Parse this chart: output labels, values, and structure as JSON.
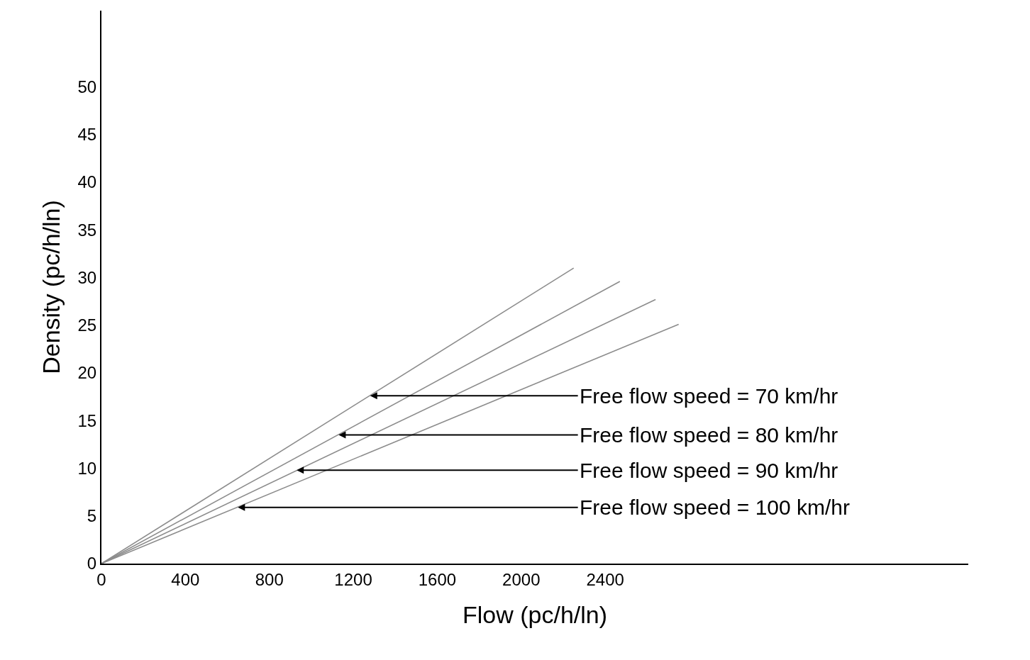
{
  "chart_data": {
    "type": "line",
    "xlabel": "Flow (pc/h/ln)",
    "ylabel": "Density (pc/h/ln)",
    "series": [
      {
        "color": "#8c8c8c",
        "x": [
          0,
          2250
        ],
        "values": [
          0,
          31
        ]
      },
      {
        "color": "#8c8c8c",
        "x": [
          0,
          2470
        ],
        "values": [
          0,
          29.6
        ]
      },
      {
        "color": "#8c8c8c",
        "x": [
          0,
          2640
        ],
        "values": [
          0,
          27.7
        ]
      },
      {
        "color": "#8c8c8c",
        "x": [
          0,
          2750
        ],
        "values": [
          0,
          25.1
        ]
      }
    ],
    "annotations": [
      {
        "text": "Free flow speed = 70 km/hr",
        "x": 1280,
        "y": 17.6
      },
      {
        "text": "Free flow speed = 80 km/hr",
        "x": 1130,
        "y": 13.5
      },
      {
        "text": "Free flow speed = 90 km/hr",
        "x": 930,
        "y": 9.8
      },
      {
        "text": "Free flow speed = 100 km/hr",
        "x": 650,
        "y": 5.9
      }
    ],
    "xlim": [
      0,
      4130
    ],
    "xticks": [
      0,
      400,
      800,
      1200,
      1600,
      2000,
      2400
    ],
    "ylim": [
      0,
      58
    ],
    "yticks": [
      0,
      5,
      10,
      15,
      20,
      25,
      30,
      35,
      40,
      45,
      50
    ],
    "grid": false,
    "marker": "none",
    "line_style": "solid"
  }
}
